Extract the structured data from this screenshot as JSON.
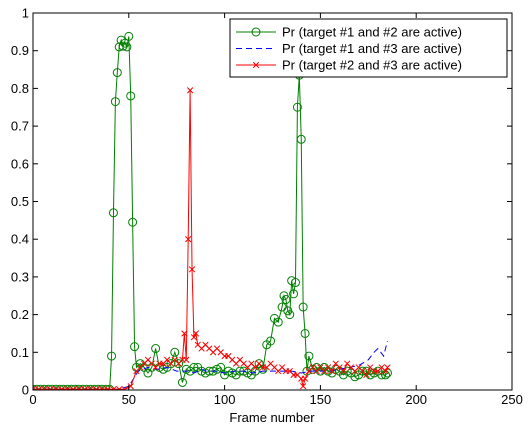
{
  "chart_data": {
    "type": "line",
    "title": "",
    "xlabel": "Frame number",
    "ylabel": "",
    "xlim": [
      0,
      250
    ],
    "ylim": [
      0,
      1
    ],
    "xticks": [
      0,
      50,
      100,
      150,
      200,
      250
    ],
    "yticks": [
      0,
      0.1,
      0.2,
      0.3,
      0.4,
      0.5,
      0.6,
      0.7,
      0.8,
      0.9,
      1
    ],
    "xtick_labels": [
      "0",
      "50",
      "100",
      "150",
      "200",
      "250"
    ],
    "ytick_labels": [
      "0",
      "0.1",
      "0.2",
      "0.3",
      "0.4",
      "0.5",
      "0.6",
      "0.7",
      "0.8",
      "0.9",
      "1"
    ],
    "grid": false,
    "legend_position": "top-right",
    "series": [
      {
        "name": "Pr (target #1 and #2 are active)",
        "color": "#008000",
        "line_style": "solid",
        "marker": "circle",
        "x": [
          0,
          2,
          4,
          6,
          8,
          10,
          12,
          14,
          16,
          18,
          20,
          22,
          24,
          26,
          28,
          30,
          32,
          34,
          36,
          38,
          40,
          41,
          42,
          43,
          44,
          45,
          46,
          47,
          48,
          49,
          50,
          51,
          52,
          53,
          54,
          56,
          58,
          60,
          62,
          64,
          66,
          68,
          70,
          72,
          74,
          76,
          78,
          80,
          82,
          84,
          86,
          88,
          90,
          92,
          94,
          96,
          98,
          100,
          102,
          104,
          106,
          108,
          110,
          112,
          114,
          116,
          118,
          120,
          122,
          124,
          126,
          128,
          130,
          131,
          132,
          133,
          134,
          135,
          136,
          137,
          138,
          139,
          140,
          141,
          142,
          143,
          144,
          146,
          148,
          150,
          152,
          154,
          156,
          158,
          160,
          162,
          164,
          166,
          168,
          170,
          172,
          174,
          176,
          178,
          180,
          182,
          184,
          185
        ],
        "y": [
          0.002,
          0.002,
          0.002,
          0.002,
          0.002,
          0.002,
          0.002,
          0.002,
          0.002,
          0.002,
          0.002,
          0.002,
          0.002,
          0.002,
          0.002,
          0.002,
          0.002,
          0.002,
          0.002,
          0.002,
          0.002,
          0.09,
          0.47,
          0.765,
          0.842,
          0.91,
          0.928,
          0.912,
          0.92,
          0.91,
          0.938,
          0.78,
          0.445,
          0.115,
          0.06,
          0.07,
          0.06,
          0.045,
          0.06,
          0.11,
          0.06,
          0.055,
          0.06,
          0.07,
          0.1,
          0.07,
          0.02,
          0.055,
          0.05,
          0.06,
          0.06,
          0.05,
          0.045,
          0.05,
          0.05,
          0.055,
          0.06,
          0.04,
          0.05,
          0.045,
          0.04,
          0.05,
          0.05,
          0.045,
          0.04,
          0.05,
          0.07,
          0.055,
          0.12,
          0.13,
          0.19,
          0.18,
          0.22,
          0.25,
          0.24,
          0.21,
          0.2,
          0.29,
          0.255,
          0.285,
          0.75,
          0.835,
          0.665,
          0.22,
          0.15,
          0.05,
          0.09,
          0.055,
          0.06,
          0.05,
          0.06,
          0.05,
          0.045,
          0.055,
          0.05,
          0.04,
          0.05,
          0.045,
          0.035,
          0.04,
          0.05,
          0.05,
          0.04,
          0.045,
          0.05,
          0.04,
          0.04,
          0.045
        ]
      },
      {
        "name": "Pr (target #1 and #3 are active)",
        "color": "#0000ff",
        "line_style": "dashed",
        "marker": "none",
        "x": [
          0,
          10,
          20,
          30,
          40,
          45,
          50,
          55,
          60,
          65,
          70,
          75,
          80,
          82,
          84,
          86,
          88,
          90,
          95,
          100,
          105,
          110,
          115,
          120,
          125,
          130,
          135,
          140,
          145,
          150,
          155,
          160,
          165,
          170,
          175,
          178,
          180,
          183,
          185
        ],
        "y": [
          0.002,
          0.002,
          0.002,
          0.002,
          0.002,
          0.002,
          0.01,
          0.05,
          0.06,
          0.055,
          0.06,
          0.05,
          0.05,
          0.05,
          0.045,
          0.05,
          0.055,
          0.05,
          0.05,
          0.045,
          0.05,
          0.05,
          0.045,
          0.05,
          0.05,
          0.05,
          0.05,
          0.045,
          0.05,
          0.05,
          0.05,
          0.055,
          0.06,
          0.065,
          0.08,
          0.1,
          0.11,
          0.09,
          0.13
        ]
      },
      {
        "name": "Pr (target #2 and #3 are active)",
        "color": "#ff0000",
        "line_style": "solid",
        "marker": "x",
        "x": [
          0,
          3,
          6,
          9,
          12,
          15,
          18,
          21,
          24,
          27,
          30,
          33,
          36,
          39,
          42,
          45,
          48,
          51,
          54,
          56,
          58,
          60,
          62,
          64,
          66,
          68,
          70,
          72,
          74,
          76,
          78,
          79,
          80,
          81,
          82,
          83,
          84,
          85,
          86,
          88,
          90,
          92,
          94,
          96,
          98,
          100,
          102,
          104,
          106,
          108,
          110,
          112,
          114,
          116,
          118,
          120,
          122,
          124,
          126,
          128,
          130,
          132,
          134,
          136,
          138,
          140,
          141,
          142,
          144,
          146,
          148,
          150,
          152,
          154,
          156,
          158,
          160,
          162,
          164,
          166,
          168,
          170,
          172,
          174,
          176,
          178,
          180,
          182,
          184,
          185
        ],
        "y": [
          0.002,
          0.002,
          0.002,
          0.002,
          0.002,
          0.002,
          0.002,
          0.002,
          0.002,
          0.002,
          0.002,
          0.002,
          0.002,
          0.002,
          0.002,
          0.002,
          0.002,
          0.01,
          0.05,
          0.06,
          0.07,
          0.08,
          0.07,
          0.06,
          0.07,
          0.07,
          0.08,
          0.07,
          0.08,
          0.07,
          0.08,
          0.15,
          0.08,
          0.4,
          0.795,
          0.32,
          0.14,
          0.15,
          0.12,
          0.11,
          0.12,
          0.11,
          0.1,
          0.11,
          0.1,
          0.09,
          0.09,
          0.08,
          0.07,
          0.08,
          0.07,
          0.06,
          0.07,
          0.06,
          0.07,
          0.06,
          0.06,
          0.07,
          0.06,
          0.05,
          0.06,
          0.05,
          0.05,
          0.04,
          0.04,
          0.03,
          0.01,
          0.03,
          0.05,
          0.06,
          0.05,
          0.06,
          0.05,
          0.06,
          0.05,
          0.07,
          0.06,
          0.05,
          0.07,
          0.06,
          0.05,
          0.06,
          0.05,
          0.04,
          0.06,
          0.05,
          0.05,
          0.06,
          0.05,
          0.06
        ]
      }
    ]
  }
}
